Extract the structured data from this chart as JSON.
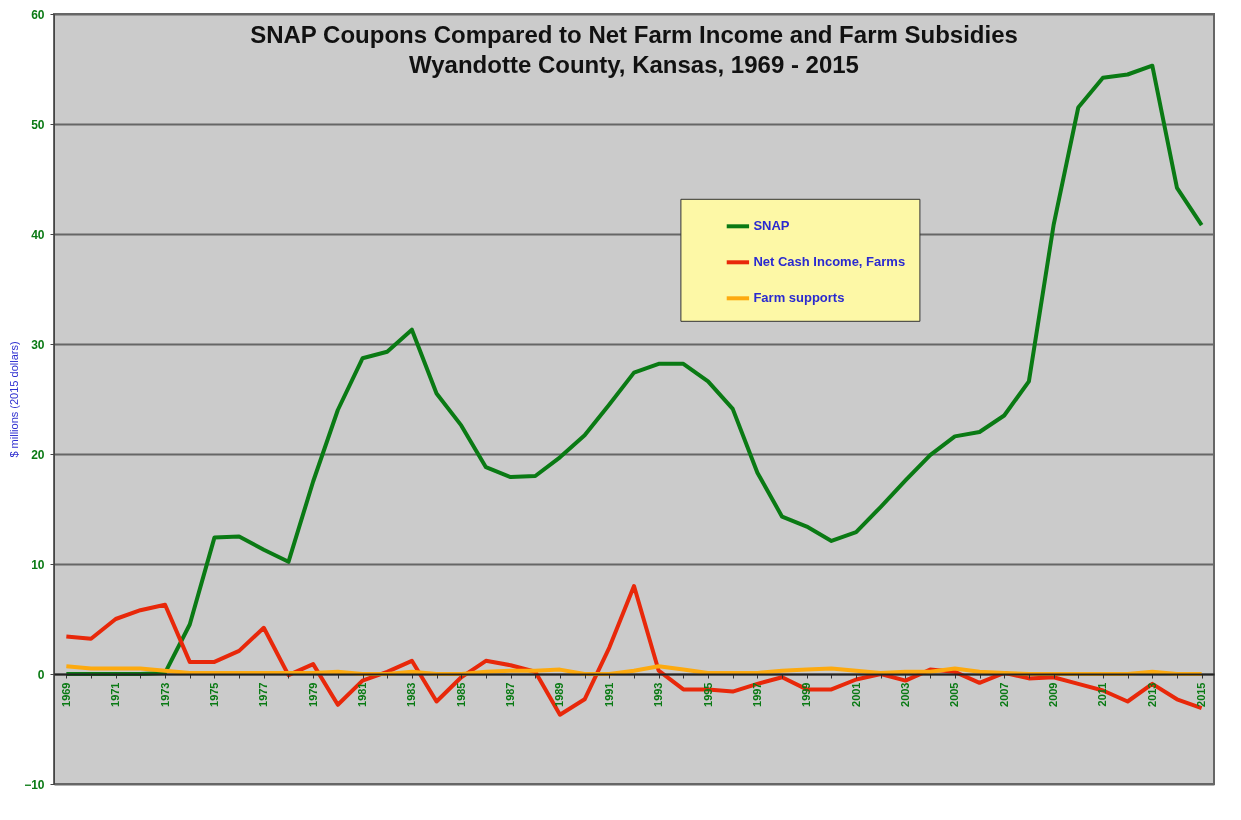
{
  "chart_data": {
    "type": "line",
    "title": "SNAP Coupons Compared to Net Farm Income and Farm Subsidies",
    "subtitle": "Wyandotte County, Kansas,  1969 - 2015",
    "ylabel": "$ millions (2015 dollars)",
    "categories": [
      "1969",
      null,
      "1971",
      null,
      "1973",
      null,
      "1975",
      null,
      "1977",
      null,
      "1979",
      null,
      "1981",
      null,
      "1983",
      null,
      "1985",
      null,
      "1987",
      null,
      "1989",
      null,
      "1991",
      null,
      "1993",
      null,
      "1995",
      null,
      "1997",
      null,
      "1999",
      null,
      "2001",
      null,
      "2003",
      null,
      "2005",
      null,
      "2007",
      null,
      "2009",
      null,
      "2011",
      null,
      "2013",
      null,
      "2015"
    ],
    "series": [
      {
        "name": "SNAP",
        "color": "#0a7a14",
        "values": [
          0,
          0,
          0,
          0,
          0.1,
          4.5,
          12.4,
          12.5,
          11.3,
          10.2,
          17.5,
          24.0,
          28.7,
          29.3,
          31.3,
          25.5,
          22.6,
          18.8,
          17.9,
          18.0,
          19.7,
          21.7,
          24.5,
          27.4,
          28.2,
          28.2,
          26.6,
          24.1,
          18.3,
          14.3,
          13.4,
          12.1,
          12.9,
          15.2,
          17.6,
          19.9,
          21.6,
          22.0,
          23.5,
          26.6,
          40.8,
          51.5,
          54.2,
          54.5,
          55.3,
          44.2,
          40.8
        ]
      },
      {
        "name": "Net Cash Income, Farms",
        "color": "#e8280a",
        "values": [
          3.4,
          3.2,
          5.0,
          5.8,
          6.3,
          1.1,
          1.1,
          2.1,
          4.2,
          -0.1,
          0.9,
          -2.8,
          -0.6,
          0.2,
          1.2,
          -2.5,
          -0.3,
          1.2,
          0.8,
          0.2,
          -3.7,
          -2.3,
          2.4,
          8.0,
          0.3,
          -1.4,
          -1.4,
          -1.6,
          -0.9,
          -0.3,
          -1.4,
          -1.4,
          -0.5,
          0.0,
          -0.6,
          0.4,
          0.2,
          -0.8,
          0.1,
          -0.4,
          -0.3,
          -0.9,
          -1.5,
          -2.5,
          -0.9,
          -2.3,
          -3.1
        ]
      },
      {
        "name": "Farm supports",
        "color": "#fdaa0f",
        "values": [
          0.7,
          0.5,
          0.5,
          0.5,
          0.3,
          0.1,
          0.1,
          0.1,
          0.1,
          0.1,
          0.1,
          0.2,
          0,
          0,
          0.2,
          0,
          0,
          0.2,
          0.3,
          0.3,
          0.4,
          0,
          0,
          0.3,
          0.7,
          0.4,
          0.1,
          0.1,
          0.1,
          0.3,
          0.4,
          0.5,
          0.3,
          0.1,
          0.2,
          0.2,
          0.5,
          0.2,
          0.1,
          0,
          0,
          0,
          0,
          0,
          0.2,
          0,
          0
        ]
      }
    ],
    "ylim": [
      -10,
      60
    ],
    "yticks": [
      -10,
      0,
      10,
      20,
      30,
      40,
      50,
      60
    ],
    "grid": "y",
    "legend": "top",
    "marker": "none",
    "line_style": "solid"
  }
}
